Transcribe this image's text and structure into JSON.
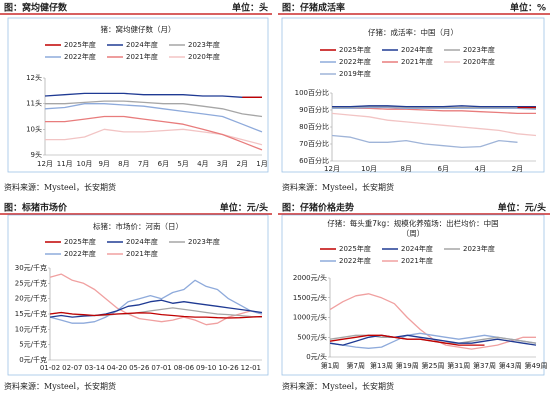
{
  "chart_data": [
    {
      "type": "line",
      "header": "图：窝均健仔数",
      "unit": "单位：头",
      "source": "资料来源：Mysteel，长安期货",
      "title": [
        "猪：窝均健仔数（月）"
      ],
      "categories": [
        "12月",
        "11月",
        "10月",
        "9月",
        "8月",
        "7月",
        "6月",
        "5月",
        "4月",
        "3月",
        "2月",
        "1月"
      ],
      "ylim": [
        9,
        12
      ],
      "yticks": [
        {
          "value": 9,
          "label": "9头"
        },
        {
          "value": 10,
          "label": "10头"
        },
        {
          "value": 11,
          "label": "11头"
        },
        {
          "value": 12,
          "label": "12头"
        }
      ],
      "series": [
        {
          "name": "2025年度",
          "color": "#c00000",
          "values": [
            null,
            null,
            null,
            null,
            null,
            null,
            null,
            null,
            null,
            null,
            11.25,
            11.25
          ]
        },
        {
          "name": "2024年度",
          "color": "#1f3a93",
          "values": [
            11.3,
            11.35,
            11.4,
            11.4,
            11.4,
            11.35,
            11.35,
            11.35,
            11.3,
            11.3,
            11.25,
            11.25
          ]
        },
        {
          "name": "2023年度",
          "color": "#a6a6a6",
          "values": [
            11.0,
            11.0,
            11.05,
            11.1,
            11.1,
            11.05,
            11.0,
            11.0,
            10.9,
            10.8,
            10.6,
            10.5
          ]
        },
        {
          "name": "2022年度",
          "color": "#8eaadb",
          "values": [
            10.8,
            10.85,
            11.0,
            11.0,
            10.95,
            10.9,
            10.8,
            10.7,
            10.6,
            10.5,
            10.2,
            9.9
          ]
        },
        {
          "name": "2021年度",
          "color": "#e87c7c",
          "values": [
            10.3,
            10.3,
            10.4,
            10.5,
            10.5,
            10.4,
            10.3,
            10.2,
            10.0,
            9.8,
            9.5,
            9.2
          ]
        },
        {
          "name": "2020年度",
          "color": "#f2c4c4",
          "values": [
            9.6,
            9.6,
            9.7,
            10.0,
            9.9,
            9.9,
            9.95,
            10.0,
            9.9,
            9.8,
            9.6,
            9.4
          ]
        }
      ]
    },
    {
      "type": "line",
      "header": "图：仔猪成活率",
      "unit": "单位：%",
      "source": "资料来源：Mysteel，长安期货",
      "title": [
        "仔猪：成活率：中国（月）"
      ],
      "categories": [
        "12月",
        null,
        "10月",
        null,
        "8月",
        null,
        "6月",
        null,
        "4月",
        null,
        "2月",
        null
      ],
      "ylim": [
        60,
        100
      ],
      "yticks": [
        {
          "value": 60,
          "label": "60百分比"
        },
        {
          "value": 70,
          "label": "70百分比"
        },
        {
          "value": 80,
          "label": "80百分比"
        },
        {
          "value": 90,
          "label": "90百分比"
        },
        {
          "value": 100,
          "label": "100百分比"
        }
      ],
      "series": [
        {
          "name": "2025年度",
          "color": "#c00000",
          "values": [
            null,
            null,
            null,
            null,
            null,
            null,
            null,
            null,
            null,
            null,
            91.5,
            91.5
          ]
        },
        {
          "name": "2024年度",
          "color": "#1f3a93",
          "values": [
            92,
            92,
            92.5,
            92.5,
            92,
            92,
            92,
            92.5,
            92,
            92,
            92,
            92
          ]
        },
        {
          "name": "2023年度",
          "color": "#a6a6a6",
          "values": [
            91.5,
            91.5,
            92,
            92,
            91.5,
            91.5,
            91.5,
            91.5,
            91.5,
            91.5,
            91.5,
            91
          ]
        },
        {
          "name": "2022年度",
          "color": "#8eaadb",
          "values": [
            91,
            91,
            91.5,
            91.5,
            91,
            91,
            91,
            91,
            91,
            91,
            91,
            90.5
          ]
        },
        {
          "name": "2021年度",
          "color": "#e87c7c",
          "values": [
            91,
            91,
            91,
            90.5,
            90.5,
            90,
            89.5,
            89.5,
            89,
            88.5,
            88,
            88
          ]
        },
        {
          "name": "2020年度",
          "color": "#f2c4c4",
          "values": [
            88,
            87,
            86,
            84,
            83,
            82,
            81,
            80,
            79,
            78,
            76,
            75
          ]
        },
        {
          "name": "2019年度",
          "color": "#9fb4d8",
          "values": [
            75,
            74,
            71,
            71,
            72,
            70,
            69,
            68,
            68.5,
            72,
            71,
            null
          ]
        }
      ]
    },
    {
      "type": "line",
      "header": "图：标猪市场价",
      "unit": "单位：元/头",
      "source": "资料来源：Mysteel，长安期货",
      "title": [
        "标猪：市场价：河南（日）"
      ],
      "categories": [
        "01-02",
        null,
        "02-07",
        null,
        "03-14",
        null,
        "04-20",
        null,
        "05-26",
        null,
        "07-01",
        null,
        "08-06",
        null,
        "09-10",
        null,
        "10-26",
        null,
        "12-01",
        null
      ],
      "ylim": [
        0,
        30
      ],
      "yticks": [
        {
          "value": 0,
          "label": "0元/千克"
        },
        {
          "value": 5,
          "label": "5元/千克"
        },
        {
          "value": 10,
          "label": "10元/千克"
        },
        {
          "value": 15,
          "label": "15元/千克"
        },
        {
          "value": 20,
          "label": "20元/千克"
        },
        {
          "value": 25,
          "label": "25元/千克"
        },
        {
          "value": 30,
          "label": "30元/千克"
        }
      ],
      "series": [
        {
          "name": "2025年度",
          "color": "#c00000",
          "values": [
            15,
            15.5,
            15,
            14.8,
            14.5,
            14.8,
            15,
            15.2,
            15.4,
            15.3,
            14.8,
            14.5,
            14.2,
            14,
            14,
            13.8,
            13.7,
            13.8,
            14,
            14.2
          ]
        },
        {
          "name": "2024年度",
          "color": "#1f3a93",
          "values": [
            14,
            14.5,
            14,
            14.3,
            14.5,
            15,
            16,
            17.5,
            18,
            19,
            19.5,
            18.5,
            19,
            18.5,
            18,
            17.5,
            17,
            16.5,
            16,
            15.5
          ]
        },
        {
          "name": "2023年度",
          "color": "#a6a6a6",
          "values": [
            15,
            15.5,
            15,
            14.5,
            14.5,
            14.5,
            15,
            15,
            15.5,
            16,
            16.5,
            17,
            16.5,
            16,
            15.5,
            15,
            14.8,
            14.5,
            14.2,
            14
          ]
        },
        {
          "name": "2022年度",
          "color": "#8eaadb",
          "values": [
            14,
            13,
            12,
            12,
            12.5,
            14,
            16,
            19,
            20,
            21,
            20,
            22,
            23,
            26,
            24,
            23,
            20,
            18,
            16,
            15
          ]
        },
        {
          "name": "2021年度",
          "color": "#f0a0a0",
          "values": [
            27,
            28,
            26,
            25,
            23,
            20,
            17,
            15,
            13.5,
            13,
            12.5,
            13,
            14,
            13,
            11.5,
            12,
            14,
            15,
            16,
            15
          ]
        }
      ]
    },
    {
      "type": "line",
      "header": "图：仔猪价格走势",
      "unit": "单位：元/头",
      "source": "资料来源：Mysteel，长安期货",
      "title": [
        "仔猪：每头重7kg：规模化养殖场：出栏均价：中国",
        "（周）"
      ],
      "categories": [
        "第1周",
        null,
        "第7周",
        null,
        "第13周",
        null,
        "第19周",
        null,
        "第25周",
        null,
        "第31周",
        null,
        "第37周",
        null,
        "第43周",
        null,
        "第49周"
      ],
      "ylim": [
        0,
        2000
      ],
      "yticks": [
        {
          "value": 0,
          "label": "0元/头"
        },
        {
          "value": 500,
          "label": "500元/头"
        },
        {
          "value": 1000,
          "label": "1000元/头"
        },
        {
          "value": 1500,
          "label": "1500元/头"
        },
        {
          "value": 2000,
          "label": "2000元/头"
        }
      ],
      "series": [
        {
          "name": "2025年度",
          "color": "#c00000",
          "values": [
            400,
            450,
            500,
            550,
            550,
            500,
            450,
            450,
            400,
            350,
            300,
            300,
            300,
            null,
            null,
            null,
            null
          ]
        },
        {
          "name": "2024年度",
          "color": "#1f3a93",
          "values": [
            350,
            300,
            400,
            500,
            550,
            500,
            550,
            500,
            450,
            400,
            350,
            350,
            400,
            450,
            400,
            350,
            300
          ]
        },
        {
          "name": "2023年度",
          "color": "#a6a6a6",
          "values": [
            450,
            500,
            550,
            550,
            500,
            500,
            450,
            450,
            400,
            350,
            350,
            400,
            450,
            500,
            450,
            400,
            350
          ]
        },
        {
          "name": "2022年度",
          "color": "#8eaadb",
          "values": [
            350,
            300,
            250,
            220,
            250,
            400,
            550,
            600,
            550,
            500,
            450,
            500,
            550,
            500,
            450,
            400,
            350
          ]
        },
        {
          "name": "2021年度",
          "color": "#f0a0a0",
          "values": [
            1200,
            1400,
            1550,
            1600,
            1500,
            1350,
            1000,
            700,
            450,
            300,
            250,
            200,
            250,
            300,
            400,
            500,
            500
          ]
        }
      ]
    }
  ]
}
